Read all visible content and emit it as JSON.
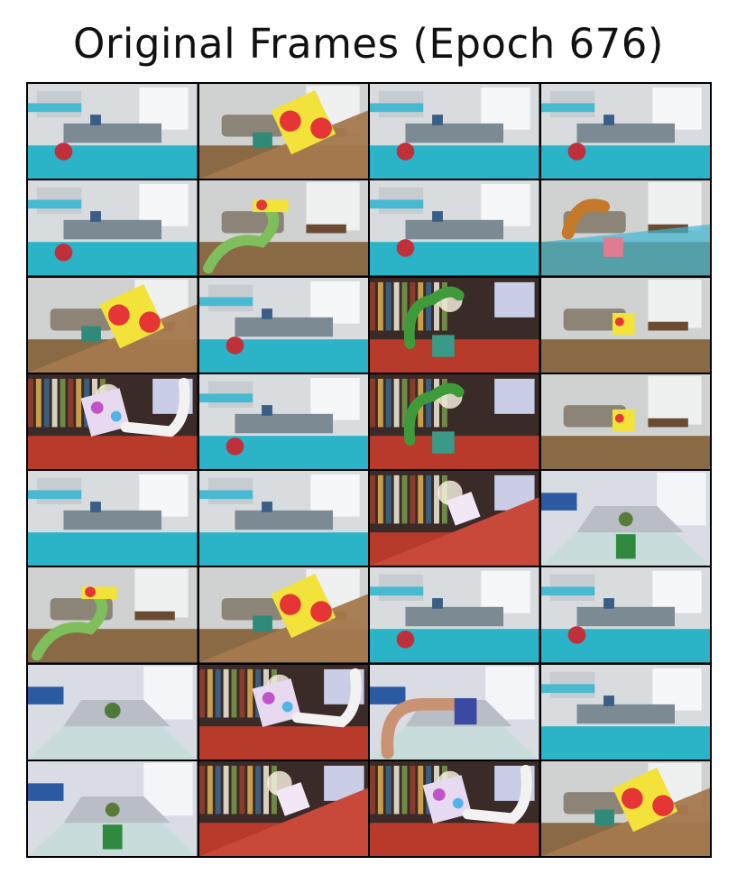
{
  "title": "Original Frames (Epoch 676)",
  "grid": {
    "columns": 4,
    "rows": 8,
    "frames": [
      {
        "scene": "kitchen-ball"
      },
      {
        "scene": "living-ramp-cube"
      },
      {
        "scene": "kitchen-ball"
      },
      {
        "scene": "kitchen-ball"
      },
      {
        "scene": "kitchen-ball-left"
      },
      {
        "scene": "living-arm-green"
      },
      {
        "scene": "kitchen-ball"
      },
      {
        "scene": "orange-arm-ramp"
      },
      {
        "scene": "living-ramp-cube"
      },
      {
        "scene": "kitchen-ball"
      },
      {
        "scene": "library-arm-green"
      },
      {
        "scene": "living-small-cube"
      },
      {
        "scene": "library-cube-white-arm"
      },
      {
        "scene": "kitchen-ball-left"
      },
      {
        "scene": "library-arm-green"
      },
      {
        "scene": "living-small-cube"
      },
      {
        "scene": "kitchen-empty"
      },
      {
        "scene": "kitchen-empty"
      },
      {
        "scene": "library-ramp-cube"
      },
      {
        "scene": "conference-green-box"
      },
      {
        "scene": "living-arm-green"
      },
      {
        "scene": "living-ramp-cube"
      },
      {
        "scene": "kitchen-ball-left"
      },
      {
        "scene": "kitchen-ball"
      },
      {
        "scene": "conference-plant"
      },
      {
        "scene": "library-cube-white-arm"
      },
      {
        "scene": "conference-pink-arm"
      },
      {
        "scene": "kitchen-empty"
      },
      {
        "scene": "conference-green-box"
      },
      {
        "scene": "library-ramp-cube"
      },
      {
        "scene": "library-cube-white-arm"
      },
      {
        "scene": "living-ramp-cube"
      }
    ]
  },
  "colors": {
    "table_cyan": "#2bb3c8",
    "wall_light": "#dfe3e6",
    "floor_wood": "#8a6a45",
    "library_red": "#b83a2a",
    "robot_green": "#3f9a3a",
    "cube_yellow": "#f2e23a",
    "dot_red": "#e53535"
  }
}
